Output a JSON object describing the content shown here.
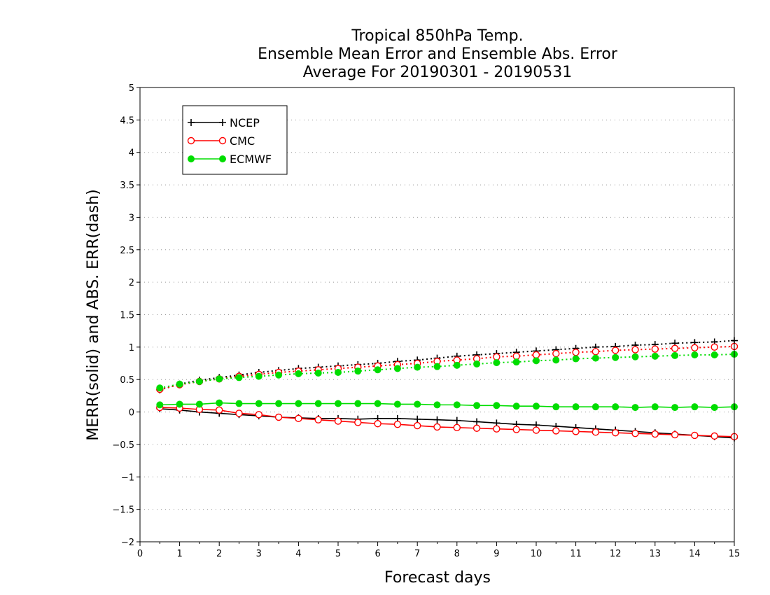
{
  "chart_data": {
    "type": "line",
    "title_lines": [
      "Tropical 850hPa Temp.",
      "Ensemble Mean Error and Ensemble Abs. Error",
      "Average For 20190301 - 20190531"
    ],
    "xlabel": "Forecast days",
    "ylabel": "MERR(solid) and ABS. ERR(dash)",
    "xlim": [
      0,
      15
    ],
    "ylim": [
      -2,
      5
    ],
    "x_ticks": [
      "0",
      "1",
      "2",
      "3",
      "4",
      "5",
      "6",
      "7",
      "8",
      "9",
      "10",
      "11",
      "12",
      "13",
      "14",
      "15"
    ],
    "y_ticks": [
      "5",
      "4.5",
      "4",
      "3.5",
      "3",
      "2.5",
      "2",
      "1.5",
      "1",
      "0.5",
      "0",
      "−0.5",
      "−1",
      "−1.5",
      "−2"
    ],
    "y_tick_values": [
      5,
      4.5,
      4,
      3.5,
      3,
      2.5,
      2,
      1.5,
      1,
      0.5,
      0,
      -0.5,
      -1,
      -1.5,
      -2
    ],
    "grid": "horizontal-dotted",
    "legend_position": "top-left",
    "x": [
      0.5,
      1,
      1.5,
      2,
      2.5,
      3,
      3.5,
      4,
      4.5,
      5,
      5.5,
      6,
      6.5,
      7,
      7.5,
      8,
      8.5,
      9,
      9.5,
      10,
      10.5,
      11,
      11.5,
      12,
      12.5,
      13,
      13.5,
      14,
      14.5,
      15
    ],
    "series": [
      {
        "name": "NCEP",
        "color": "#000000",
        "marker": "plus",
        "merr": [
          0.05,
          0.03,
          0.0,
          -0.02,
          -0.04,
          -0.06,
          -0.08,
          -0.09,
          -0.1,
          -0.1,
          -0.11,
          -0.1,
          -0.1,
          -0.11,
          -0.12,
          -0.13,
          -0.15,
          -0.17,
          -0.19,
          -0.2,
          -0.22,
          -0.24,
          -0.26,
          -0.28,
          -0.3,
          -0.32,
          -0.34,
          -0.36,
          -0.38,
          -0.4
        ],
        "abs_err": [
          0.34,
          0.43,
          0.49,
          0.53,
          0.57,
          0.61,
          0.64,
          0.67,
          0.69,
          0.71,
          0.73,
          0.75,
          0.78,
          0.8,
          0.83,
          0.86,
          0.88,
          0.9,
          0.92,
          0.94,
          0.96,
          0.98,
          1.0,
          1.01,
          1.03,
          1.04,
          1.06,
          1.07,
          1.08,
          1.1
        ]
      },
      {
        "name": "CMC",
        "color": "#ff0000",
        "marker": "open-circle",
        "merr": [
          0.07,
          0.06,
          0.04,
          0.03,
          -0.02,
          -0.04,
          -0.08,
          -0.1,
          -0.12,
          -0.14,
          -0.16,
          -0.18,
          -0.19,
          -0.21,
          -0.23,
          -0.24,
          -0.25,
          -0.26,
          -0.27,
          -0.28,
          -0.29,
          -0.3,
          -0.31,
          -0.32,
          -0.33,
          -0.34,
          -0.35,
          -0.36,
          -0.37,
          -0.38
        ],
        "abs_err": [
          0.35,
          0.42,
          0.47,
          0.51,
          0.55,
          0.58,
          0.61,
          0.63,
          0.65,
          0.67,
          0.69,
          0.71,
          0.73,
          0.75,
          0.78,
          0.8,
          0.82,
          0.85,
          0.86,
          0.88,
          0.9,
          0.92,
          0.93,
          0.95,
          0.96,
          0.97,
          0.98,
          0.99,
          1.0,
          1.01
        ]
      },
      {
        "name": "ECMWF",
        "color": "#00dd00",
        "marker": "filled-circle",
        "merr": [
          0.11,
          0.12,
          0.12,
          0.14,
          0.13,
          0.13,
          0.13,
          0.13,
          0.13,
          0.13,
          0.13,
          0.13,
          0.12,
          0.12,
          0.11,
          0.11,
          0.1,
          0.1,
          0.09,
          0.09,
          0.08,
          0.08,
          0.08,
          0.08,
          0.07,
          0.08,
          0.07,
          0.08,
          0.07,
          0.08
        ],
        "abs_err": [
          0.37,
          0.43,
          0.47,
          0.51,
          0.53,
          0.55,
          0.57,
          0.59,
          0.6,
          0.61,
          0.63,
          0.65,
          0.67,
          0.69,
          0.7,
          0.72,
          0.74,
          0.76,
          0.77,
          0.79,
          0.8,
          0.82,
          0.83,
          0.84,
          0.85,
          0.86,
          0.87,
          0.88,
          0.88,
          0.89
        ]
      }
    ]
  }
}
